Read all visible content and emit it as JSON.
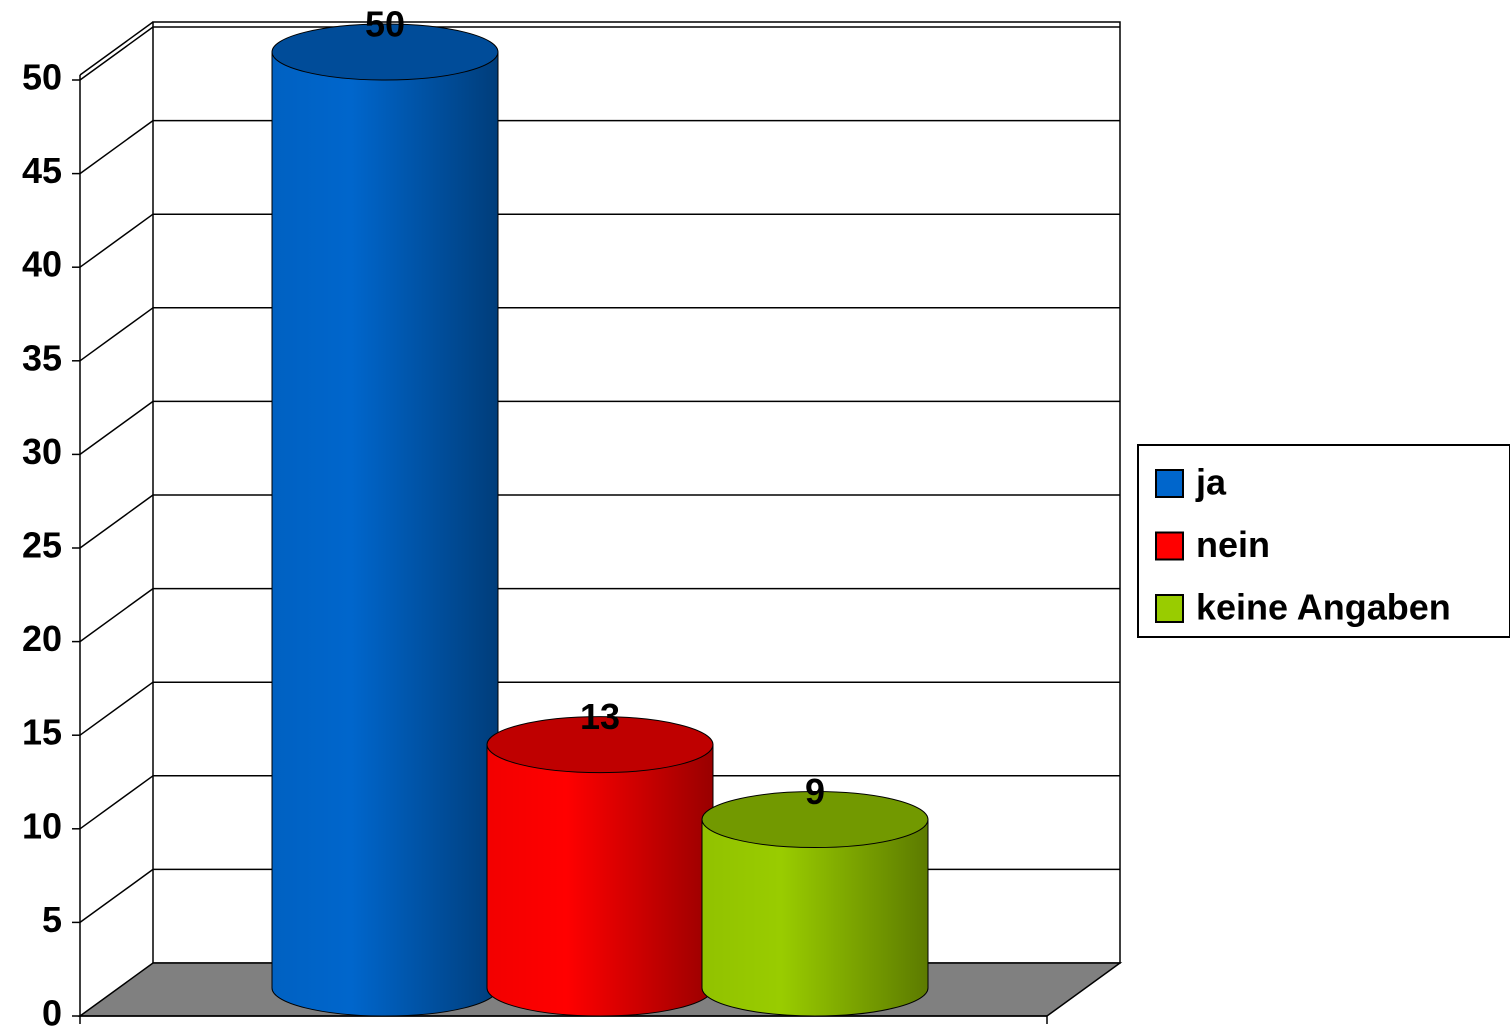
{
  "chart_data": {
    "type": "bar",
    "three_d": "cylinder",
    "series": [
      {
        "name": "ja",
        "color": "#0066cc",
        "values": [
          50
        ]
      },
      {
        "name": "nein",
        "color": "#ff0000",
        "values": [
          13
        ]
      },
      {
        "name": "keine Angaben",
        "color": "#99cc00",
        "values": [
          9
        ]
      }
    ],
    "ylim": [
      0,
      50
    ],
    "yticks": [
      0,
      5,
      10,
      15,
      20,
      25,
      30,
      35,
      40,
      45,
      50
    ],
    "grid": true,
    "legend": "right",
    "data_labels": true
  }
}
